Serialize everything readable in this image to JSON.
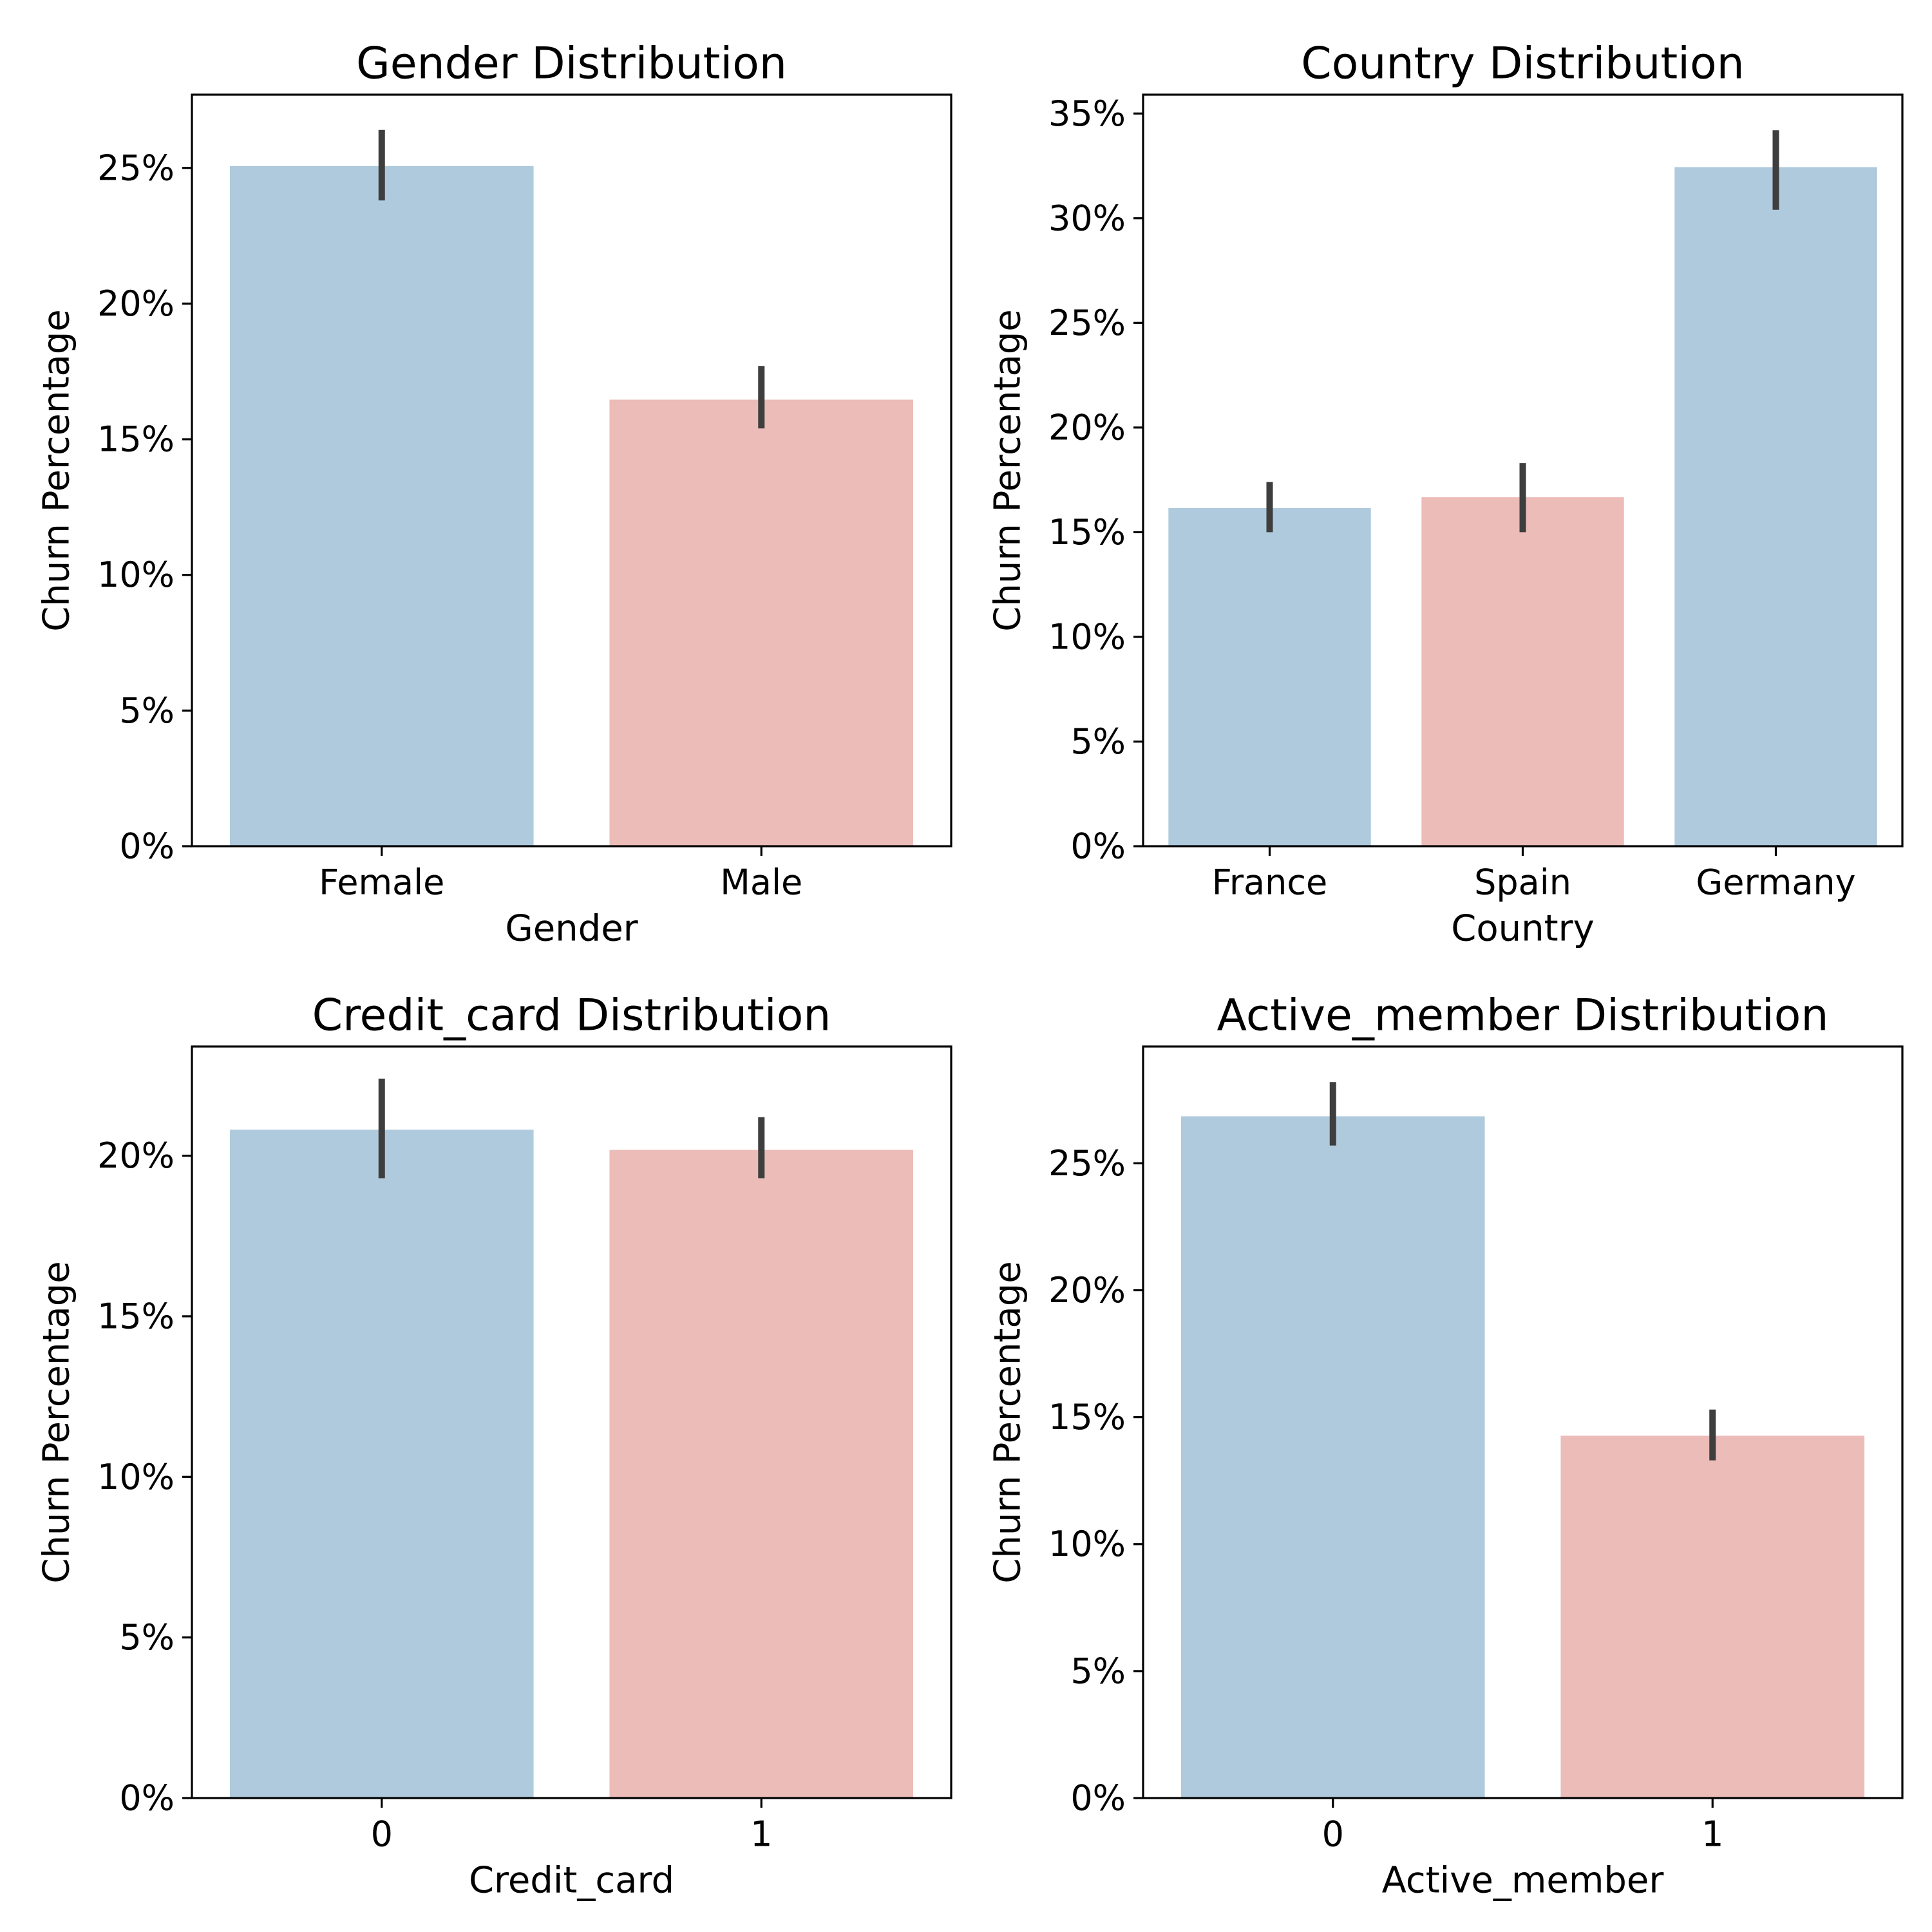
{
  "colors": {
    "bar_primary": "#afcadd",
    "bar_secondary": "#ecbcb9",
    "error_bar": "#3e3e3e"
  },
  "chart_data": [
    {
      "type": "bar",
      "title": "Gender Distribution",
      "xlabel": "Gender",
      "ylabel": "Churn Percentage",
      "categories": [
        "Female",
        "Male"
      ],
      "values": [
        25.07,
        16.46
      ],
      "error_low": [
        23.8,
        15.4
      ],
      "error_high": [
        26.4,
        17.7
      ],
      "ylim": [
        0,
        27.7
      ],
      "yticks": [
        0,
        5,
        10,
        15,
        20,
        25
      ],
      "ytick_labels": [
        "0%",
        "5%",
        "10%",
        "15%",
        "20%",
        "25%"
      ],
      "grid": false,
      "legend": "none"
    },
    {
      "type": "bar",
      "title": "Country Distribution",
      "xlabel": "Country",
      "ylabel": "Churn Percentage",
      "categories": [
        "France",
        "Spain",
        "Germany"
      ],
      "values": [
        16.15,
        16.67,
        32.44
      ],
      "error_low": [
        15.0,
        15.0,
        30.4
      ],
      "error_high": [
        17.4,
        18.3,
        34.2
      ],
      "ylim": [
        0,
        35.9
      ],
      "yticks": [
        0,
        5,
        10,
        15,
        20,
        25,
        30,
        35
      ],
      "ytick_labels": [
        "0%",
        "5%",
        "10%",
        "15%",
        "20%",
        "25%",
        "30%",
        "35%"
      ],
      "grid": false,
      "legend": "none"
    },
    {
      "type": "bar",
      "title": "Credit_card Distribution",
      "xlabel": "Credit_card",
      "ylabel": "Churn Percentage",
      "categories": [
        "0",
        "1"
      ],
      "values": [
        20.81,
        20.18
      ],
      "error_low": [
        19.3,
        19.3
      ],
      "error_high": [
        22.4,
        21.2
      ],
      "ylim": [
        0,
        23.4
      ],
      "yticks": [
        0,
        5,
        10,
        15,
        20
      ],
      "ytick_labels": [
        "0%",
        "5%",
        "10%",
        "15%",
        "20%"
      ],
      "grid": false,
      "legend": "none"
    },
    {
      "type": "bar",
      "title": "Active_member Distribution",
      "xlabel": "Active_member",
      "ylabel": "Churn Percentage",
      "categories": [
        "0",
        "1"
      ],
      "values": [
        26.85,
        14.27
      ],
      "error_low": [
        25.7,
        13.3
      ],
      "error_high": [
        28.2,
        15.3
      ],
      "ylim": [
        0,
        29.6
      ],
      "yticks": [
        0,
        5,
        10,
        15,
        20,
        25
      ],
      "ytick_labels": [
        "0%",
        "5%",
        "10%",
        "15%",
        "20%",
        "25%"
      ],
      "grid": false,
      "legend": "none"
    }
  ]
}
